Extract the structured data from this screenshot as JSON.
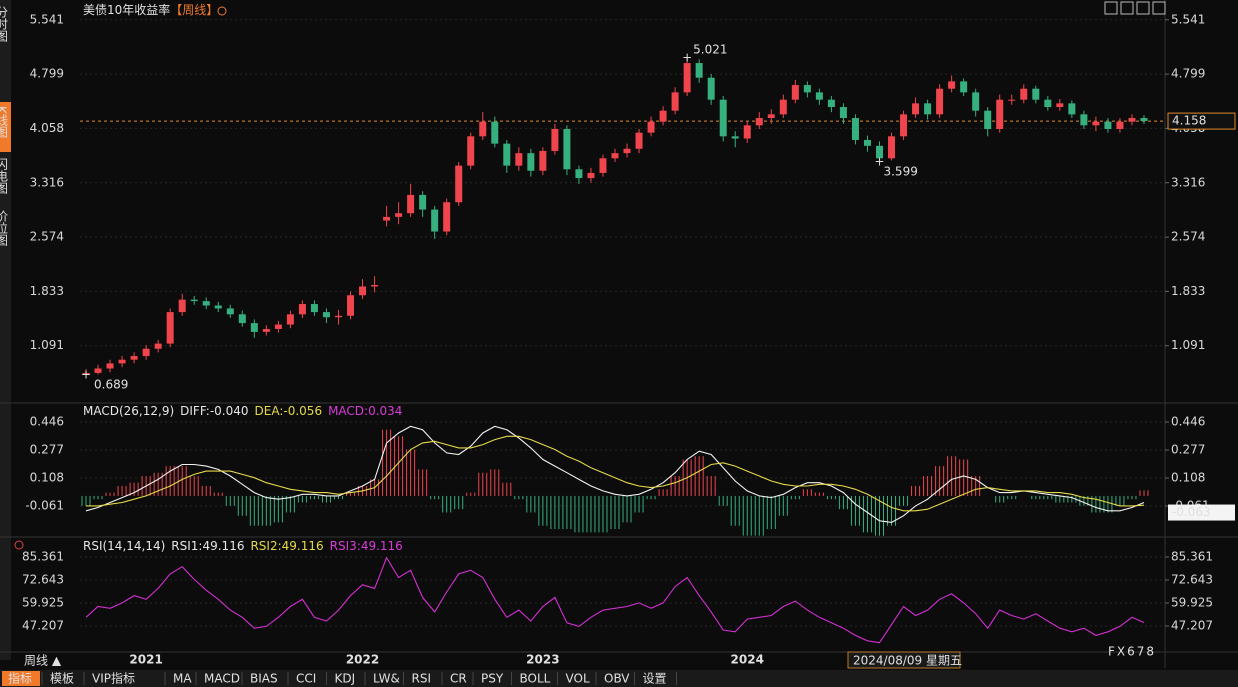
{
  "chart_data": [
    {
      "type": "candlestick",
      "title": "美债10年收益率",
      "period": "【周线】",
      "open": [
        0.7,
        0.72,
        0.78,
        0.85,
        0.9,
        0.95,
        1.05,
        1.12,
        1.55,
        1.72,
        1.7,
        1.64,
        1.6,
        1.52,
        1.4,
        1.28,
        1.32,
        1.38,
        1.52,
        1.66,
        1.55,
        1.48,
        1.5,
        1.78,
        1.9,
        2.8,
        2.85,
        2.9,
        3.15,
        2.95,
        2.65,
        3.05,
        3.55,
        3.95,
        4.15,
        3.85,
        3.55,
        3.72,
        3.48,
        3.75,
        4.05,
        3.5,
        3.38,
        3.45,
        3.65,
        3.72,
        3.78,
        4.0,
        4.15,
        4.3,
        4.55,
        4.95,
        4.75,
        4.45,
        3.95,
        3.92,
        4.1,
        4.2,
        4.25,
        4.45,
        4.65,
        4.55,
        4.45,
        4.35,
        4.2,
        3.9,
        3.82,
        3.65,
        3.95,
        4.25,
        4.4,
        4.25,
        4.6,
        4.7,
        4.55,
        4.3,
        4.05,
        4.45,
        4.45,
        4.6,
        4.45,
        4.35,
        4.4,
        4.25,
        4.1,
        4.15,
        4.05,
        4.15,
        4.2
      ],
      "high": [
        0.77,
        0.83,
        0.9,
        0.95,
        1.0,
        1.1,
        1.17,
        1.6,
        1.8,
        1.77,
        1.75,
        1.69,
        1.65,
        1.57,
        1.45,
        1.37,
        1.43,
        1.57,
        1.71,
        1.71,
        1.6,
        1.58,
        1.83,
        2.0,
        2.04,
        3.0,
        3.05,
        3.3,
        3.2,
        3.0,
        3.1,
        3.6,
        4.0,
        4.28,
        4.22,
        3.9,
        3.8,
        3.78,
        3.8,
        4.12,
        4.1,
        3.55,
        3.52,
        3.7,
        3.78,
        3.85,
        4.05,
        4.22,
        4.36,
        4.62,
        5.021,
        5.0,
        4.8,
        4.5,
        4.02,
        4.16,
        4.28,
        4.32,
        4.52,
        4.72,
        4.7,
        4.6,
        4.5,
        4.4,
        4.25,
        3.96,
        3.88,
        4.0,
        4.3,
        4.48,
        4.45,
        4.66,
        4.78,
        4.74,
        4.6,
        4.35,
        4.52,
        4.52,
        4.66,
        4.64,
        4.5,
        4.46,
        4.44,
        4.3,
        4.22,
        4.2,
        4.2,
        4.25,
        4.24
      ],
      "low": [
        0.689,
        0.7,
        0.73,
        0.8,
        0.85,
        0.9,
        1.0,
        1.07,
        1.5,
        1.65,
        1.59,
        1.55,
        1.47,
        1.35,
        1.2,
        1.23,
        1.27,
        1.33,
        1.47,
        1.5,
        1.4,
        1.38,
        1.45,
        1.73,
        1.82,
        2.72,
        2.75,
        2.85,
        2.85,
        2.55,
        2.6,
        3.0,
        3.5,
        3.9,
        3.8,
        3.45,
        3.48,
        3.4,
        3.42,
        3.7,
        3.42,
        3.3,
        3.32,
        3.4,
        3.6,
        3.66,
        3.72,
        3.95,
        4.1,
        4.25,
        4.5,
        4.68,
        4.38,
        3.88,
        3.8,
        3.86,
        4.05,
        4.12,
        4.2,
        4.4,
        4.48,
        4.38,
        4.28,
        4.12,
        3.84,
        3.74,
        3.599,
        3.62,
        3.9,
        4.2,
        4.18,
        4.2,
        4.55,
        4.5,
        4.22,
        3.95,
        4.0,
        4.38,
        4.4,
        4.4,
        4.3,
        4.3,
        4.2,
        4.05,
        4.02,
        4.0,
        4.0,
        4.1,
        4.12
      ],
      "close": [
        0.72,
        0.78,
        0.85,
        0.9,
        0.95,
        1.05,
        1.12,
        1.55,
        1.72,
        1.7,
        1.64,
        1.6,
        1.52,
        1.4,
        1.28,
        1.32,
        1.38,
        1.52,
        1.66,
        1.55,
        1.48,
        1.5,
        1.78,
        1.9,
        1.92,
        2.85,
        2.9,
        3.15,
        2.95,
        2.65,
        3.05,
        3.55,
        3.95,
        4.15,
        3.85,
        3.55,
        3.72,
        3.48,
        3.75,
        4.05,
        3.5,
        3.38,
        3.45,
        3.65,
        3.72,
        3.78,
        4.0,
        4.15,
        4.3,
        4.55,
        4.95,
        4.75,
        4.45,
        3.95,
        3.92,
        4.1,
        4.2,
        4.25,
        4.45,
        4.65,
        4.55,
        4.45,
        4.35,
        4.2,
        3.9,
        3.82,
        3.65,
        3.95,
        4.25,
        4.4,
        4.25,
        4.6,
        4.7,
        4.55,
        4.3,
        4.05,
        4.45,
        4.45,
        4.6,
        4.45,
        4.35,
        4.4,
        4.25,
        4.1,
        4.15,
        4.05,
        4.15,
        4.2,
        4.158
      ],
      "up_color": "#f0454d",
      "down_color": "#36b07f",
      "last_color": "#e08a2c",
      "ylim": [
        0.35,
        5.62
      ],
      "yticks": [
        5.541,
        4.799,
        4.058,
        3.316,
        2.574,
        1.833,
        1.091
      ],
      "grid": true
    },
    {
      "type": "macd",
      "legend": [
        "MACD(26,12,9)",
        "DIFF:-0.040",
        "DEA:-0.056",
        "MACD:0.034"
      ],
      "legend_colors": [
        "#e6e6e6",
        "#e6e6e6",
        "#e6d94a",
        "#d93cd9"
      ],
      "last_label": "-0.063",
      "diff": [
        -0.09,
        -0.07,
        -0.04,
        -0.01,
        0.02,
        0.06,
        0.1,
        0.15,
        0.19,
        0.19,
        0.18,
        0.16,
        0.12,
        0.07,
        0.02,
        -0.01,
        -0.02,
        -0.01,
        0.01,
        0.01,
        0.0,
        0.0,
        0.03,
        0.06,
        0.1,
        0.32,
        0.38,
        0.42,
        0.4,
        0.32,
        0.26,
        0.25,
        0.3,
        0.38,
        0.42,
        0.4,
        0.35,
        0.29,
        0.22,
        0.18,
        0.14,
        0.1,
        0.06,
        0.03,
        0.01,
        0.0,
        0.01,
        0.04,
        0.08,
        0.14,
        0.22,
        0.27,
        0.25,
        0.17,
        0.09,
        0.03,
        0.0,
        -0.01,
        0.01,
        0.05,
        0.08,
        0.08,
        0.06,
        0.02,
        -0.05,
        -0.1,
        -0.15,
        -0.16,
        -0.12,
        -0.06,
        -0.02,
        0.04,
        0.1,
        0.12,
        0.1,
        0.05,
        0.02,
        0.02,
        0.03,
        0.02,
        0.01,
        0.0,
        -0.01,
        -0.04,
        -0.07,
        -0.09,
        -0.09,
        -0.07,
        -0.04
      ],
      "dea": [
        -0.06,
        -0.06,
        -0.05,
        -0.04,
        -0.02,
        0.0,
        0.03,
        0.06,
        0.1,
        0.13,
        0.15,
        0.15,
        0.15,
        0.13,
        0.11,
        0.08,
        0.06,
        0.04,
        0.03,
        0.02,
        0.02,
        0.01,
        0.02,
        0.03,
        0.05,
        0.12,
        0.2,
        0.28,
        0.32,
        0.33,
        0.31,
        0.29,
        0.29,
        0.31,
        0.34,
        0.36,
        0.36,
        0.34,
        0.31,
        0.28,
        0.24,
        0.21,
        0.17,
        0.14,
        0.11,
        0.08,
        0.06,
        0.05,
        0.06,
        0.08,
        0.11,
        0.15,
        0.19,
        0.2,
        0.18,
        0.15,
        0.12,
        0.09,
        0.07,
        0.06,
        0.06,
        0.07,
        0.07,
        0.06,
        0.04,
        0.01,
        -0.03,
        -0.07,
        -0.09,
        -0.09,
        -0.08,
        -0.05,
        -0.02,
        0.01,
        0.04,
        0.05,
        0.04,
        0.03,
        0.03,
        0.03,
        0.02,
        0.02,
        0.01,
        -0.01,
        -0.02,
        -0.04,
        -0.06,
        -0.06,
        -0.056
      ],
      "macd": [
        -0.06,
        -0.02,
        0.02,
        0.06,
        0.08,
        0.12,
        0.14,
        0.18,
        0.18,
        0.12,
        0.06,
        0.02,
        -0.06,
        -0.12,
        -0.18,
        -0.18,
        -0.16,
        -0.1,
        -0.04,
        -0.02,
        -0.04,
        -0.02,
        0.02,
        0.06,
        0.1,
        0.4,
        0.36,
        0.28,
        0.16,
        -0.02,
        -0.1,
        -0.08,
        0.02,
        0.14,
        0.16,
        0.08,
        -0.02,
        -0.1,
        -0.18,
        -0.2,
        -0.2,
        -0.22,
        -0.22,
        -0.22,
        -0.2,
        -0.16,
        -0.1,
        -0.02,
        0.04,
        0.12,
        0.22,
        0.24,
        0.12,
        -0.06,
        -0.18,
        -0.24,
        -0.24,
        -0.2,
        -0.12,
        -0.02,
        0.04,
        0.02,
        -0.02,
        -0.08,
        -0.18,
        -0.22,
        -0.24,
        -0.18,
        -0.06,
        0.06,
        0.12,
        0.18,
        0.24,
        0.22,
        0.12,
        0.0,
        -0.04,
        -0.02,
        0.0,
        -0.02,
        -0.02,
        -0.04,
        -0.04,
        -0.06,
        -0.1,
        -0.1,
        -0.06,
        -0.02,
        0.034
      ],
      "diff_color": "#f2f2f2",
      "dea_color": "#e6d94a",
      "up_color": "#f0454d",
      "down_color": "#36b07f",
      "ylim": [
        -0.236,
        0.549
      ],
      "yticks": [
        0.446,
        0.277,
        0.108,
        -0.061
      ],
      "grid": true
    },
    {
      "type": "rsi",
      "legend": [
        "RSI(14,14,14)",
        "RSI1:49.116",
        "RSI2:49.116",
        "RSI3:49.116"
      ],
      "legend_colors": [
        "#e6e6e6",
        "#e6e6e6",
        "#e6d94a",
        "#d93cd9"
      ],
      "values": [
        52,
        58,
        57,
        60,
        64,
        62,
        68,
        76,
        80,
        73,
        67,
        62,
        56,
        52,
        46,
        47,
        52,
        58,
        62,
        52,
        50,
        56,
        64,
        70,
        68,
        85,
        74,
        78,
        63,
        55,
        66,
        76,
        78,
        74,
        62,
        52,
        56,
        50,
        58,
        63,
        49,
        47,
        52,
        56,
        57,
        58,
        60,
        57,
        60,
        69,
        74,
        64,
        55,
        45,
        44,
        51,
        52,
        53,
        58,
        61,
        56,
        52,
        49,
        46,
        42,
        39,
        38,
        48,
        58,
        53,
        56,
        62,
        65,
        60,
        54,
        46,
        56,
        53,
        51,
        54,
        50,
        46,
        44,
        46,
        42,
        44,
        47,
        52,
        49.116
      ],
      "color": "#d42fd4",
      "categories": [
        null,
        null,
        null,
        null,
        null,
        "2021",
        null,
        null,
        null,
        null,
        null,
        null,
        null,
        null,
        null,
        null,
        null,
        null,
        null,
        null,
        null,
        null,
        null,
        "2022",
        null,
        null,
        null,
        null,
        null,
        null,
        null,
        null,
        null,
        null,
        null,
        null,
        null,
        null,
        "2023",
        null,
        null,
        null,
        null,
        null,
        null,
        null,
        null,
        null,
        null,
        null,
        null,
        null,
        null,
        null,
        null,
        "2024",
        null,
        null,
        null,
        null,
        null,
        null,
        null,
        null,
        null,
        null,
        null,
        null,
        null,
        null,
        null,
        null,
        null,
        null,
        null,
        null,
        null,
        null,
        null,
        null,
        null,
        null,
        null,
        null,
        null,
        null,
        null,
        null,
        null
      ],
      "ylim": [
        33.94,
        94.76
      ],
      "yticks": [
        85.361,
        72.643,
        59.925,
        47.207
      ],
      "grid": true
    }
  ],
  "page": {
    "sidebar": [
      "分时图",
      "K线图",
      "闪电图",
      "价位图"
    ],
    "period_button": "周线 ▲",
    "crosshair_date": "2024/08/09 星期五",
    "toolbar": [
      "指标",
      "模板",
      "VIP指标",
      "MA",
      "MACD",
      "BIAS",
      "CCI",
      "KDJ",
      "LW&",
      "RSI",
      "CR",
      "PSY",
      "BOLL",
      "VOL",
      "OBV",
      "设置"
    ],
    "watermark": "FX678"
  }
}
